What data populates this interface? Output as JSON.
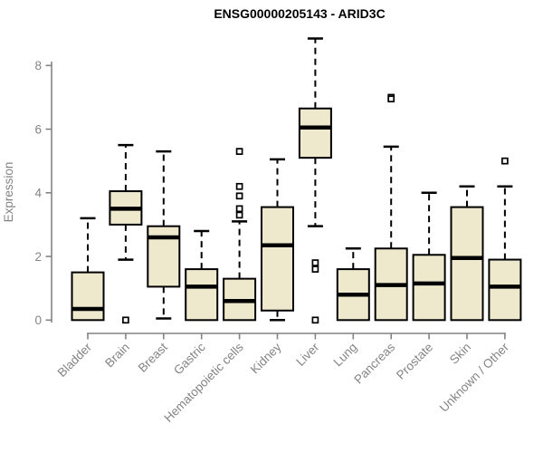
{
  "chart_data": {
    "type": "boxplot",
    "title": "ENSG00000205143 - ARID3C",
    "ylabel": "Expression",
    "xlabel": "",
    "ylim": [
      0,
      8.9
    ],
    "yticks": [
      0,
      2,
      4,
      6,
      8
    ],
    "grid": false,
    "legend": "none",
    "x_label_rotation_deg": 45,
    "colors": {
      "box_fill": "#EEE8CD",
      "box_stroke": "#000000",
      "median": "#000000",
      "whisker": "#000000",
      "outlier_stroke": "#000000",
      "axis": "#848484",
      "axis_text": "#848484",
      "title_text": "#000000",
      "background": "#ffffff"
    },
    "categories": [
      "Bladder",
      "Brain",
      "Breast",
      "Gastric",
      "Hematopoietic cells",
      "Kidney",
      "Liver",
      "Lung",
      "Pancreas",
      "Prostate",
      "Skin",
      "Unknown / Other"
    ],
    "series": [
      {
        "category": "Bladder",
        "low": 0,
        "q1": 0,
        "median": 0.35,
        "q3": 1.5,
        "high": 3.2,
        "outliers": []
      },
      {
        "category": "Brain",
        "low": 1.9,
        "q1": 3.0,
        "median": 3.5,
        "q3": 4.05,
        "high": 5.5,
        "outliers": [
          0
        ]
      },
      {
        "category": "Breast",
        "low": 0.05,
        "q1": 1.05,
        "median": 2.6,
        "q3": 2.95,
        "high": 5.3,
        "outliers": []
      },
      {
        "category": "Gastric",
        "low": 0,
        "q1": 0,
        "median": 1.05,
        "q3": 1.6,
        "high": 2.8,
        "outliers": []
      },
      {
        "category": "Hematopoietic cells",
        "low": 0,
        "q1": 0,
        "median": 0.6,
        "q3": 1.3,
        "high": 3.1,
        "outliers": [
          5.3,
          4.2,
          3.9,
          3.5,
          3.3
        ]
      },
      {
        "category": "Kidney",
        "low": 0,
        "q1": 0.3,
        "median": 2.35,
        "q3": 3.55,
        "high": 5.05,
        "outliers": []
      },
      {
        "category": "Liver",
        "low": 2.95,
        "q1": 5.1,
        "median": 6.05,
        "q3": 6.65,
        "high": 8.85,
        "outliers": [
          1.8,
          1.6,
          0
        ]
      },
      {
        "category": "Lung",
        "low": 0,
        "q1": 0,
        "median": 0.8,
        "q3": 1.6,
        "high": 2.25,
        "outliers": []
      },
      {
        "category": "Pancreas",
        "low": 0,
        "q1": 0,
        "median": 1.1,
        "q3": 2.25,
        "high": 5.45,
        "outliers": [
          7.0,
          6.95
        ]
      },
      {
        "category": "Prostate",
        "low": 0,
        "q1": 0,
        "median": 1.15,
        "q3": 2.05,
        "high": 4.0,
        "outliers": []
      },
      {
        "category": "Skin",
        "low": 0,
        "q1": 0,
        "median": 1.95,
        "q3": 3.55,
        "high": 4.2,
        "outliers": []
      },
      {
        "category": "Unknown / Other",
        "low": 0,
        "q1": 0,
        "median": 1.05,
        "q3": 1.9,
        "high": 4.2,
        "outliers": [
          5.0
        ]
      }
    ]
  }
}
